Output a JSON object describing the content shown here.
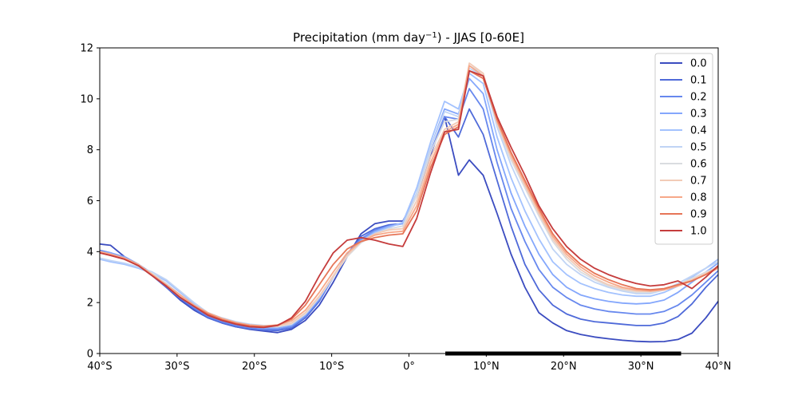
{
  "chart_data": {
    "type": "line",
    "title": "Precipitation (mm day",
    "title_sup": "−1",
    "title_suffix": ") - JJAS [0-60E]",
    "xlabel": "",
    "ylabel": "",
    "xlim": [
      -40,
      40
    ],
    "ylim": [
      0,
      12
    ],
    "xticks": [
      -40,
      -30,
      -20,
      -10,
      0,
      10,
      20,
      30,
      40
    ],
    "xtick_labels": [
      "40°S",
      "30°S",
      "20°S",
      "10°S",
      "0°",
      "10°N",
      "20°N",
      "30°N",
      "40°N"
    ],
    "yticks": [
      0,
      2,
      4,
      6,
      8,
      10,
      12
    ],
    "ytick_labels": [
      "0",
      "2",
      "4",
      "6",
      "8",
      "10",
      "12"
    ],
    "grid": false,
    "legend_position": "top-right",
    "bar_range": [
      4.7,
      35.2
    ],
    "x": [
      -40,
      -38.6,
      -36.8,
      -35,
      -33.2,
      -31.4,
      -29.6,
      -27.8,
      -26,
      -24.2,
      -22.4,
      -20.6,
      -18.8,
      -17,
      -15.2,
      -13.4,
      -11.6,
      -9.8,
      -8,
      -6.2,
      -4.4,
      -2.6,
      -0.8,
      1,
      2.8,
      4.6,
      6.4,
      7.8,
      9.6,
      11.4,
      13.2,
      15,
      16.8,
      18.6,
      20.4,
      22.2,
      24,
      25.8,
      27.6,
      29.4,
      31.2,
      33,
      34.8,
      36.6,
      38.4,
      40
    ],
    "series": [
      {
        "name": "0.0",
        "color": "#3b4cc0",
        "values": [
          4.3,
          4.25,
          3.8,
          3.5,
          3.1,
          2.6,
          2.1,
          1.7,
          1.4,
          1.2,
          1.05,
          0.95,
          0.88,
          0.82,
          0.95,
          1.3,
          1.9,
          2.8,
          3.8,
          4.7,
          5.1,
          5.2,
          5.2,
          6.2,
          7.8,
          9.3,
          7.0,
          7.6,
          7.0,
          5.5,
          3.9,
          2.6,
          1.6,
          1.2,
          0.9,
          0.75,
          0.65,
          0.58,
          0.52,
          0.48,
          0.46,
          0.47,
          0.55,
          0.8,
          1.4,
          2.05
        ]
      },
      {
        "name": "0.1",
        "color": "#4f6ad9",
        "values": [
          4.05,
          3.95,
          3.75,
          3.45,
          3.05,
          2.6,
          2.15,
          1.75,
          1.4,
          1.2,
          1.05,
          0.97,
          0.92,
          0.9,
          1.0,
          1.4,
          2.05,
          3.0,
          3.9,
          4.6,
          4.9,
          5.05,
          5.1,
          6.2,
          7.9,
          9.3,
          8.5,
          9.6,
          8.6,
          6.8,
          5.0,
          3.5,
          2.5,
          1.9,
          1.55,
          1.35,
          1.25,
          1.2,
          1.15,
          1.1,
          1.1,
          1.2,
          1.45,
          1.95,
          2.6,
          3.1
        ]
      },
      {
        "name": "0.2",
        "color": "#6788ee",
        "values": [
          4.05,
          3.95,
          3.75,
          3.45,
          3.05,
          2.65,
          2.2,
          1.8,
          1.45,
          1.25,
          1.1,
          1.0,
          0.95,
          0.95,
          1.05,
          1.45,
          2.1,
          3.0,
          3.9,
          4.5,
          4.85,
          5.0,
          5.1,
          6.2,
          7.9,
          9.3,
          9.2,
          10.4,
          9.6,
          7.5,
          5.7,
          4.4,
          3.3,
          2.6,
          2.2,
          1.9,
          1.75,
          1.65,
          1.6,
          1.55,
          1.55,
          1.65,
          1.9,
          2.3,
          2.8,
          3.25
        ]
      },
      {
        "name": "0.3",
        "color": "#84a7fc",
        "values": [
          4.0,
          3.95,
          3.8,
          3.5,
          3.15,
          2.75,
          2.3,
          1.85,
          1.5,
          1.3,
          1.15,
          1.05,
          1.0,
          1.0,
          1.1,
          1.5,
          2.15,
          3.0,
          3.85,
          4.45,
          4.8,
          5.0,
          5.1,
          6.3,
          8.1,
          9.6,
          9.4,
          10.8,
          10.2,
          8.0,
          6.3,
          5.0,
          3.9,
          3.1,
          2.6,
          2.3,
          2.15,
          2.05,
          1.98,
          1.95,
          1.98,
          2.1,
          2.4,
          2.8,
          3.2,
          3.55
        ]
      },
      {
        "name": "0.4",
        "color": "#a3c2fe",
        "values": [
          3.7,
          3.6,
          3.5,
          3.35,
          3.15,
          2.85,
          2.4,
          1.95,
          1.55,
          1.35,
          1.2,
          1.1,
          1.05,
          1.05,
          1.15,
          1.55,
          2.2,
          3.05,
          3.85,
          4.4,
          4.75,
          4.95,
          5.15,
          6.5,
          8.3,
          9.9,
          9.6,
          11.0,
          10.6,
          8.5,
          6.9,
          5.6,
          4.5,
          3.6,
          3.1,
          2.75,
          2.55,
          2.4,
          2.3,
          2.25,
          2.25,
          2.4,
          2.65,
          3.0,
          3.35,
          3.7
        ]
      },
      {
        "name": "0.5",
        "color": "#c0d4f5",
        "values": [
          3.75,
          3.65,
          3.55,
          3.4,
          3.2,
          2.9,
          2.45,
          2.0,
          1.6,
          1.4,
          1.25,
          1.15,
          1.1,
          1.1,
          1.2,
          1.6,
          2.25,
          3.05,
          3.85,
          4.35,
          4.7,
          4.9,
          5.0,
          6.3,
          8.1,
          9.5,
          9.3,
          11.2,
          10.9,
          8.9,
          7.4,
          6.2,
          5.1,
          4.1,
          3.5,
          3.1,
          2.8,
          2.6,
          2.45,
          2.35,
          2.35,
          2.5,
          2.75,
          3.05,
          3.35,
          3.6
        ]
      },
      {
        "name": "0.6",
        "color": "#dadce0",
        "values": [
          3.95,
          3.85,
          3.7,
          3.45,
          3.15,
          2.75,
          2.3,
          1.9,
          1.55,
          1.35,
          1.2,
          1.1,
          1.05,
          1.05,
          1.15,
          1.55,
          2.2,
          3.0,
          3.8,
          4.35,
          4.7,
          4.9,
          5.0,
          6.2,
          7.9,
          9.1,
          9.2,
          11.3,
          11.0,
          9.0,
          7.6,
          6.5,
          5.4,
          4.4,
          3.7,
          3.2,
          2.9,
          2.65,
          2.5,
          2.4,
          2.4,
          2.5,
          2.7,
          2.95,
          3.2,
          3.4
        ]
      },
      {
        "name": "0.7",
        "color": "#f2cbb7",
        "values": [
          4.0,
          3.9,
          3.72,
          3.45,
          3.1,
          2.7,
          2.25,
          1.88,
          1.55,
          1.35,
          1.2,
          1.1,
          1.05,
          1.08,
          1.2,
          1.6,
          2.25,
          3.05,
          3.85,
          4.4,
          4.7,
          4.85,
          4.9,
          6.0,
          7.7,
          8.8,
          9.1,
          11.4,
          11.0,
          9.1,
          7.7,
          6.6,
          5.5,
          4.5,
          3.8,
          3.3,
          2.95,
          2.7,
          2.55,
          2.45,
          2.45,
          2.5,
          2.7,
          2.9,
          3.15,
          3.35
        ]
      },
      {
        "name": "0.8",
        "color": "#f7a889",
        "values": [
          4.0,
          3.9,
          3.75,
          3.5,
          3.1,
          2.7,
          2.3,
          1.9,
          1.6,
          1.38,
          1.22,
          1.12,
          1.08,
          1.12,
          1.28,
          1.7,
          2.4,
          3.2,
          3.95,
          4.4,
          4.65,
          4.75,
          4.8,
          5.8,
          7.5,
          8.7,
          9.0,
          11.3,
          10.9,
          9.1,
          7.8,
          6.7,
          5.6,
          4.6,
          3.9,
          3.4,
          3.05,
          2.8,
          2.6,
          2.5,
          2.45,
          2.5,
          2.65,
          2.85,
          3.1,
          3.35
        ]
      },
      {
        "name": "0.9",
        "color": "#e67557",
        "values": [
          3.95,
          3.85,
          3.7,
          3.45,
          3.05,
          2.65,
          2.2,
          1.85,
          1.55,
          1.33,
          1.18,
          1.08,
          1.05,
          1.12,
          1.35,
          1.9,
          2.7,
          3.5,
          4.1,
          4.4,
          4.55,
          4.65,
          4.7,
          5.6,
          7.3,
          8.6,
          8.9,
          11.1,
          10.8,
          9.2,
          7.9,
          6.8,
          5.7,
          4.7,
          4.0,
          3.5,
          3.15,
          2.9,
          2.7,
          2.55,
          2.5,
          2.55,
          2.7,
          2.85,
          3.1,
          3.4
        ]
      },
      {
        "name": "1.0",
        "color": "#c53c3c",
        "values": [
          3.95,
          3.85,
          3.7,
          3.45,
          3.05,
          2.65,
          2.2,
          1.85,
          1.5,
          1.3,
          1.15,
          1.05,
          1.02,
          1.1,
          1.4,
          2.05,
          3.05,
          3.95,
          4.45,
          4.55,
          4.45,
          4.3,
          4.2,
          5.3,
          7.1,
          8.7,
          8.8,
          11.1,
          10.9,
          9.3,
          8.1,
          7.0,
          5.8,
          4.9,
          4.2,
          3.7,
          3.35,
          3.1,
          2.9,
          2.75,
          2.65,
          2.7,
          2.85,
          2.55,
          3.0,
          3.45
        ]
      }
    ]
  }
}
